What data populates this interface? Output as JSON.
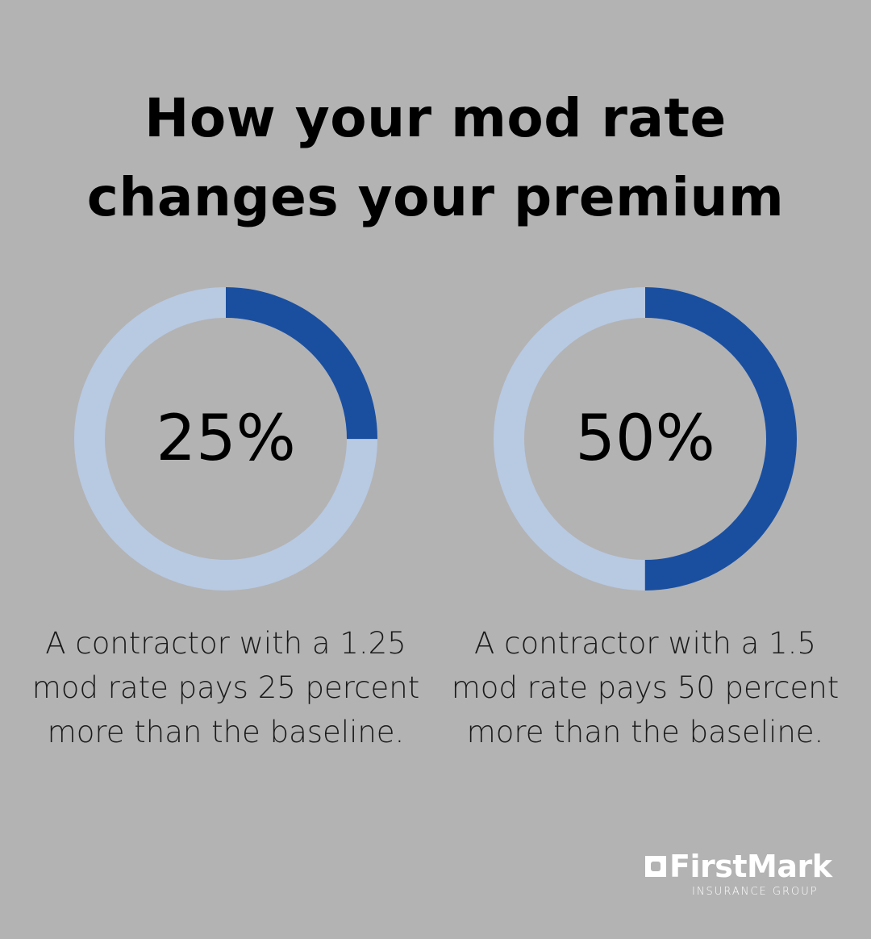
{
  "title": [
    "How your mod rate",
    "changes your premium"
  ],
  "colors": {
    "background": "#b3b3b3",
    "track": "#b8c9e2",
    "fill": "#1a4fa0"
  },
  "chart_data": [
    {
      "type": "pie",
      "variant": "donut",
      "value": 25,
      "max": 100,
      "label": "25%",
      "caption": "A contractor with a 1.25 mod rate pays 25 percent more than the baseline."
    },
    {
      "type": "pie",
      "variant": "donut",
      "value": 50,
      "max": 100,
      "label": "50%",
      "caption": "A contractor with a 1.5 mod rate pays 50 percent more than the baseline."
    }
  ],
  "logo": {
    "name": "FirstMark",
    "sub": "INSURANCE GROUP"
  }
}
